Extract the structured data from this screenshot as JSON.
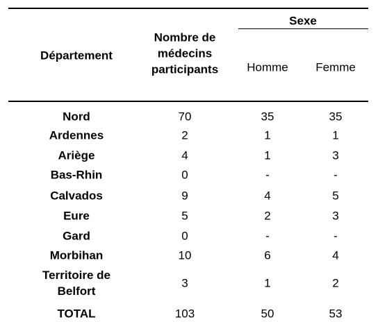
{
  "header": {
    "department": "Département",
    "doctors": "Nombre de médecins participants",
    "sex": "Sexe",
    "male": "Homme",
    "female": "Femme"
  },
  "table": {
    "rows": [
      [
        "Nord",
        70,
        35,
        35
      ],
      [
        "Ardennes",
        2,
        1,
        1
      ],
      [
        "Ariège",
        4,
        1,
        3
      ],
      [
        "Bas-Rhin",
        0,
        "-",
        "-"
      ],
      [
        "Calvados",
        9,
        4,
        5
      ],
      [
        "Eure",
        5,
        2,
        3
      ],
      [
        "Gard",
        0,
        "-",
        "-"
      ],
      [
        "Morbihan",
        10,
        6,
        4
      ],
      [
        "Territoire de Belfort",
        3,
        1,
        2
      ],
      [
        "TOTAL",
        103,
        50,
        53
      ]
    ]
  }
}
